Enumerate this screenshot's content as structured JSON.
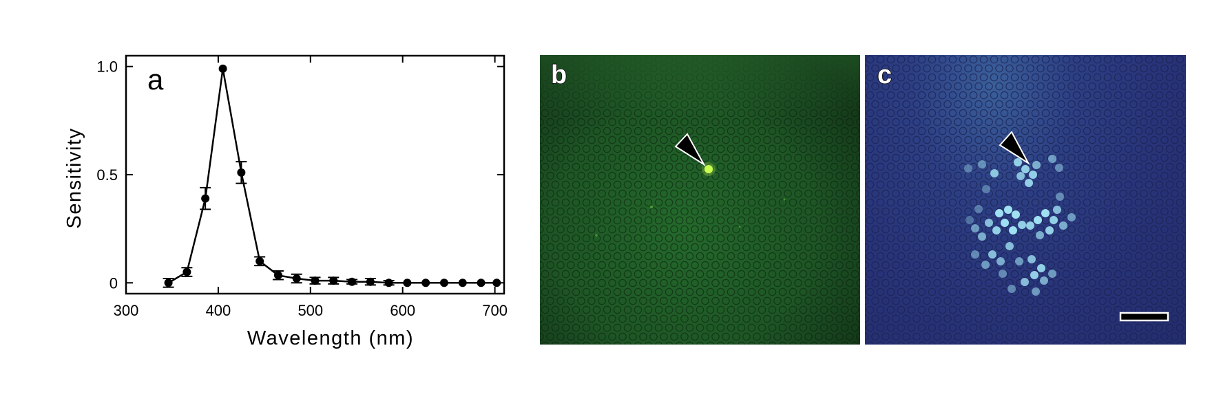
{
  "chart_data": {
    "type": "line",
    "panel_label": "a",
    "xlabel": "Wavelength (nm)",
    "ylabel": "Sensitivity",
    "xlim": [
      300,
      710
    ],
    "ylim": [
      -0.05,
      1.05
    ],
    "x_ticks": [
      300,
      400,
      500,
      600,
      700
    ],
    "x_tick_labels": [
      "300",
      "400",
      "500",
      "600",
      "700"
    ],
    "y_ticks": [
      0,
      0.5,
      1.0
    ],
    "y_tick_labels": [
      "0",
      "0.5",
      "1.0"
    ],
    "grid": false,
    "legend": "none",
    "series": [
      {
        "x": [
          346,
          366,
          386,
          405,
          425,
          445,
          465,
          485,
          505,
          525,
          545,
          565,
          585,
          605,
          625,
          645,
          665,
          685,
          702
        ],
        "y": [
          0.0,
          0.05,
          0.39,
          0.99,
          0.51,
          0.1,
          0.035,
          0.02,
          0.01,
          0.01,
          0.005,
          0.005,
          0.0,
          0.0,
          0.0,
          0.0,
          0.0,
          0.0,
          0.0
        ],
        "error": [
          0.02,
          0.02,
          0.05,
          0.0,
          0.05,
          0.02,
          0.02,
          0.02,
          0.015,
          0.015,
          0.01,
          0.015,
          0.01,
          0.0,
          0.0,
          0.0,
          0.0,
          0.0,
          0.0
        ]
      }
    ]
  },
  "panels": {
    "b_label": "b",
    "c_label": "c"
  },
  "colors": {
    "series": "#000000",
    "panel_b_tint": "#1f5a26",
    "panel_c_tint": "#2a367a",
    "marked_cell_b": "#c8ff50",
    "labeled_cells_c": "#9fe0f2"
  }
}
